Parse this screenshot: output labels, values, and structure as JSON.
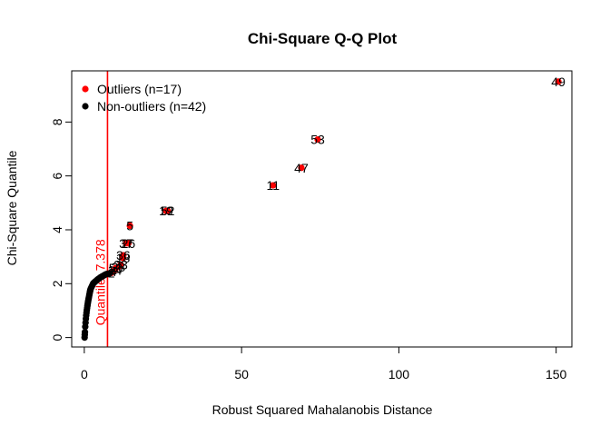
{
  "chart_data": {
    "type": "scatter",
    "title": "Chi-Square Q-Q Plot",
    "xlabel": "Robust Squared Mahalanobis Distance",
    "ylabel": "Chi-Square Quantile",
    "xlim": [
      -4,
      155
    ],
    "ylim": [
      -0.35,
      9.9
    ],
    "x_ticks": [
      0,
      50,
      100,
      150
    ],
    "y_ticks": [
      0,
      2,
      4,
      6,
      8
    ],
    "grid": false,
    "legend_position": "top-left",
    "colors": {
      "outlier": "#ff0000",
      "non_outlier": "#000000",
      "cutoff": "#ff0000"
    },
    "cutoff": {
      "x": 7.378,
      "label": "Quantile: 7.378"
    },
    "series": [
      {
        "name": "Outliers (n=17)",
        "color": "#ff0000",
        "points": [
          {
            "x": 150.7,
            "y": 9.5,
            "label": "49"
          },
          {
            "x": 74.2,
            "y": 7.35,
            "label": "53"
          },
          {
            "x": 69.0,
            "y": 6.3,
            "label": "47"
          },
          {
            "x": 60.0,
            "y": 5.65,
            "label": "11"
          },
          {
            "x": 26.5,
            "y": 4.7,
            "label": "52"
          },
          {
            "x": 26.0,
            "y": 4.7,
            "label": "19"
          },
          {
            "x": 14.5,
            "y": 4.15,
            "label": "5"
          },
          {
            "x": 14.0,
            "y": 3.5,
            "label": "26"
          },
          {
            "x": 13.3,
            "y": 3.5,
            "label": "37"
          },
          {
            "x": 12.4,
            "y": 3.05,
            "label": "36"
          },
          {
            "x": 12.3,
            "y": 2.95,
            "label": "18"
          },
          {
            "x": 11.6,
            "y": 2.7,
            "label": "33"
          },
          {
            "x": 10.8,
            "y": 2.62,
            "label": "28"
          },
          {
            "x": 10.0,
            "y": 2.58,
            "label": "50"
          },
          {
            "x": 9.7,
            "y": 2.5,
            "label": "14"
          },
          {
            "x": 9.2,
            "y": 2.45,
            "label": "4"
          },
          {
            "x": 8.6,
            "y": 2.4,
            "label": "2"
          }
        ]
      },
      {
        "name": "Non-outliers (n=42)",
        "color": "#000000",
        "points": [
          {
            "x": 0.1,
            "y": 0.0
          },
          {
            "x": 0.15,
            "y": 0.1
          },
          {
            "x": 0.2,
            "y": 0.2
          },
          {
            "x": 0.3,
            "y": 0.4
          },
          {
            "x": 0.4,
            "y": 0.55
          },
          {
            "x": 0.5,
            "y": 0.7
          },
          {
            "x": 0.6,
            "y": 0.82
          },
          {
            "x": 0.7,
            "y": 0.92
          },
          {
            "x": 0.8,
            "y": 1.02
          },
          {
            "x": 0.9,
            "y": 1.1
          },
          {
            "x": 1.0,
            "y": 1.18
          },
          {
            "x": 1.1,
            "y": 1.26
          },
          {
            "x": 1.2,
            "y": 1.33
          },
          {
            "x": 1.3,
            "y": 1.4
          },
          {
            "x": 1.4,
            "y": 1.46
          },
          {
            "x": 1.5,
            "y": 1.52
          },
          {
            "x": 1.6,
            "y": 1.58
          },
          {
            "x": 1.7,
            "y": 1.64
          },
          {
            "x": 1.8,
            "y": 1.7
          },
          {
            "x": 1.9,
            "y": 1.75
          },
          {
            "x": 2.0,
            "y": 1.8
          },
          {
            "x": 2.2,
            "y": 1.85
          },
          {
            "x": 2.4,
            "y": 1.9
          },
          {
            "x": 2.6,
            "y": 1.95
          },
          {
            "x": 2.8,
            "y": 2.0
          },
          {
            "x": 3.0,
            "y": 2.03
          },
          {
            "x": 3.3,
            "y": 2.06
          },
          {
            "x": 3.6,
            "y": 2.09
          },
          {
            "x": 3.9,
            "y": 2.12
          },
          {
            "x": 4.2,
            "y": 2.15
          },
          {
            "x": 4.5,
            "y": 2.18
          },
          {
            "x": 4.8,
            "y": 2.2
          },
          {
            "x": 5.1,
            "y": 2.23
          },
          {
            "x": 5.4,
            "y": 2.25
          },
          {
            "x": 5.7,
            "y": 2.27
          },
          {
            "x": 6.0,
            "y": 2.29
          },
          {
            "x": 6.3,
            "y": 2.31
          },
          {
            "x": 6.6,
            "y": 2.33
          },
          {
            "x": 6.9,
            "y": 2.35
          },
          {
            "x": 7.2,
            "y": 2.36
          },
          {
            "x": 7.5,
            "y": 2.37
          },
          {
            "x": 8.0,
            "y": 2.38
          }
        ]
      }
    ]
  }
}
